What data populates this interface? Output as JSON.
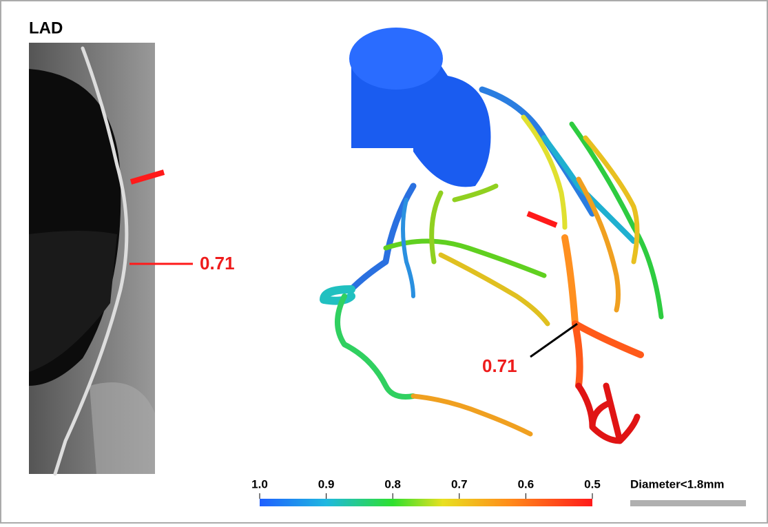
{
  "left_panel": {
    "title": "LAD",
    "annotation": "0.71"
  },
  "right_panel": {
    "annotation": "0.71",
    "colorbar": {
      "ticks": [
        {
          "value": 1.0,
          "label": "1.0"
        },
        0.9,
        0.8,
        0.7,
        0.6,
        0.5
      ]
    },
    "gray_legend": "Diameter<1.8mm"
  }
}
